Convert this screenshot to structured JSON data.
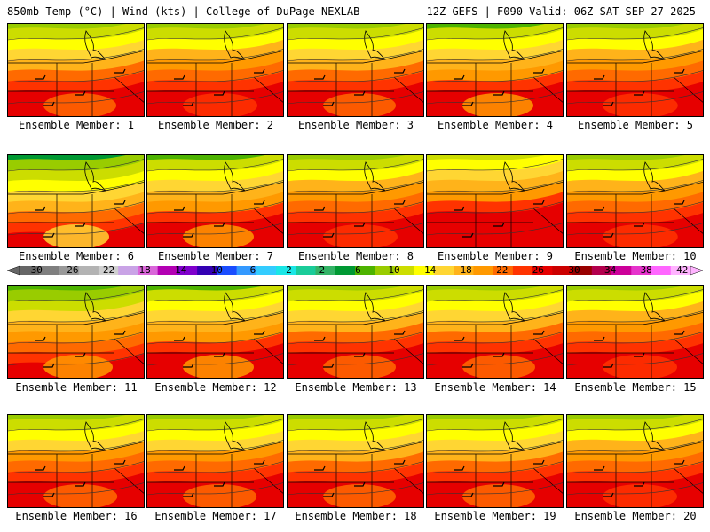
{
  "header": {
    "left": "850mb Temp (°C) | Wind (kts) | College of DuPage NEXLAB",
    "right": "12Z GEFS | F090 Valid: 06Z SAT SEP 27 2025"
  },
  "members": [
    {
      "label": "Ensemble Member: 1",
      "warmth": 0.55
    },
    {
      "label": "Ensemble Member: 2",
      "warmth": 0.6
    },
    {
      "label": "Ensemble Member: 3",
      "warmth": 0.55
    },
    {
      "label": "Ensemble Member: 4",
      "warmth": 0.5
    },
    {
      "label": "Ensemble Member: 5",
      "warmth": 0.62
    },
    {
      "label": "Ensemble Member: 6",
      "warmth": 0.35
    },
    {
      "label": "Ensemble Member: 7",
      "warmth": 0.5
    },
    {
      "label": "Ensemble Member: 8",
      "warmth": 0.6
    },
    {
      "label": "Ensemble Member: 9",
      "warmth": 0.7
    },
    {
      "label": "Ensemble Member: 10",
      "warmth": 0.62
    },
    {
      "label": "Ensemble Member: 11",
      "warmth": 0.45
    },
    {
      "label": "Ensemble Member: 12",
      "warmth": 0.5
    },
    {
      "label": "Ensemble Member: 13",
      "warmth": 0.55
    },
    {
      "label": "Ensemble Member: 14",
      "warmth": 0.55
    },
    {
      "label": "Ensemble Member: 15",
      "warmth": 0.6
    },
    {
      "label": "Ensemble Member: 16",
      "warmth": 0.58
    },
    {
      "label": "Ensemble Member: 17",
      "warmth": 0.58
    },
    {
      "label": "Ensemble Member: 18",
      "warmth": 0.55
    },
    {
      "label": "Ensemble Member: 19",
      "warmth": 0.55
    },
    {
      "label": "Ensemble Member: 20",
      "warmth": 0.6
    }
  ],
  "colorbar": {
    "labels": [
      "−30",
      "−26",
      "−22",
      "−18",
      "−14",
      "−10",
      "−6",
      "−2",
      "2",
      "6",
      "10",
      "14",
      "18",
      "22",
      "26",
      "30",
      "34",
      "38",
      "42"
    ],
    "colors": [
      "#666666",
      "#7f7f7f",
      "#999999",
      "#b3b3b3",
      "#cfcfcf",
      "#c9a3e6",
      "#d966d9",
      "#b300b3",
      "#7f00cc",
      "#3300b3",
      "#1a4dff",
      "#3399ff",
      "#33ccff",
      "#1ae6e6",
      "#1acc99",
      "#33b366",
      "#009933",
      "#4db300",
      "#99cc00",
      "#ccdd00",
      "#ffff00",
      "#ffd633",
      "#ffb31a",
      "#ff9900",
      "#ff6a00",
      "#ff3300",
      "#e60000",
      "#cc0000",
      "#990000",
      "#b3004d",
      "#cc0099",
      "#e633cc",
      "#ff66ff",
      "#ffb3ff"
    ]
  }
}
